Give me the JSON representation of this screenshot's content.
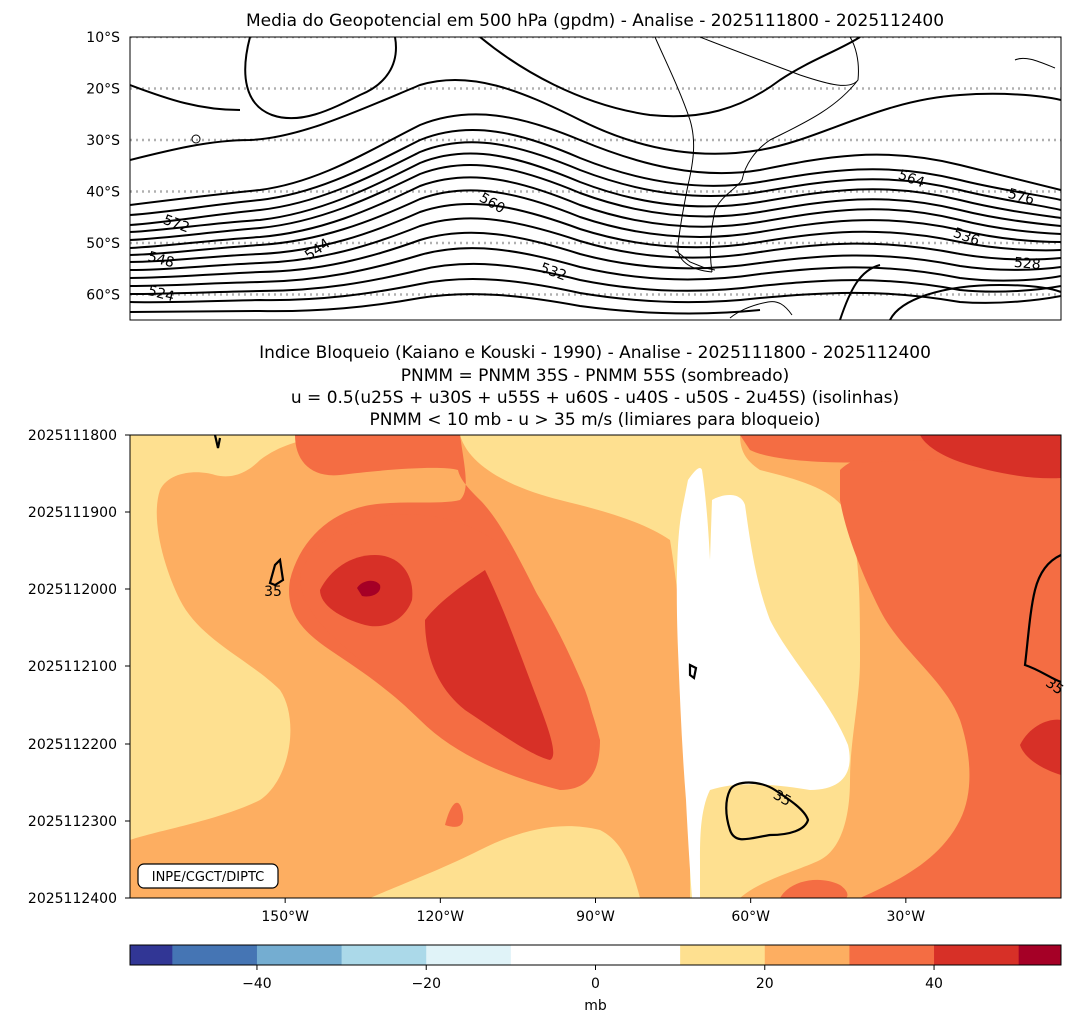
{
  "chart_data": [
    {
      "type": "contour",
      "title": "Media do Geopotencial em 500 hPa (gpdm) - Analise - 2025111800 - 2025112400",
      "variable": "Geopotential height 500 hPa",
      "units": "gpdm",
      "latitude_tick_labels": [
        "10°S",
        "20°S",
        "30°S",
        "40°S",
        "50°S",
        "60°S"
      ],
      "latitude_values": [
        -10,
        -20,
        -30,
        -40,
        -50,
        -60
      ],
      "ylim": [
        -65,
        -10
      ],
      "contour_interval": 4,
      "contour_levels": [
        520,
        524,
        528,
        532,
        536,
        540,
        544,
        548,
        552,
        556,
        560,
        564,
        568,
        572,
        576,
        580,
        584
      ],
      "contour_labels": [
        "572",
        "548",
        "544",
        "524",
        "560",
        "532",
        "564",
        "536",
        "576",
        "528"
      ],
      "gridlines": "dotted latitude lines"
    },
    {
      "type": "heatmap",
      "title_lines": [
        "Indice Bloqueio (Kaiano e Kouski - 1990) - Analise - 2025111800 - 2025112400",
        "PNMM = PNMM 35S - PNMM 55S (sombreado)",
        "u = 0.5(u25S + u30S + u55S + u60S - u40S - u50S - 2u45S) (isolinhas)",
        "PNMM < 10 mb - u > 35 m/s (limiares para bloqueio)"
      ],
      "y_tick_labels": [
        "2025111800",
        "2025111900",
        "2025112000",
        "2025112100",
        "2025112200",
        "2025112300",
        "2025112400"
      ],
      "x_tick_labels": [
        "150°W",
        "120°W",
        "90°W",
        "60°W",
        "30°W"
      ],
      "x_tick_values": [
        -150,
        -120,
        -90,
        -60,
        -30
      ],
      "xlim": [
        -180,
        0
      ],
      "contour_label": "35",
      "credit": "INPE/CGCT/DIPTC",
      "colorbar": {
        "label": "mb",
        "levels": [
          -55,
          -50,
          -40,
          -30,
          -20,
          -10,
          0,
          10,
          20,
          30,
          40,
          50,
          55
        ],
        "tick_labels": [
          "−40",
          "−20",
          "0",
          "20",
          "40"
        ],
        "tick_values": [
          -40,
          -20,
          0,
          20,
          40
        ],
        "range": [
          -55,
          55
        ],
        "colors": [
          "#313695",
          "#4575b4",
          "#74add1",
          "#abd9e9",
          "#e0f3f8",
          "#ffffff",
          "#ffffff",
          "#fee090",
          "#fdae61",
          "#f46d43",
          "#d73027",
          "#a50026"
        ]
      }
    }
  ]
}
